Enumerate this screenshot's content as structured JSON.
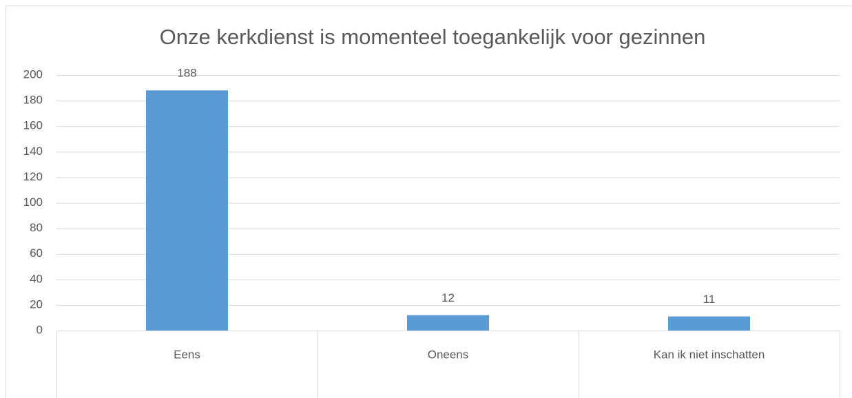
{
  "chart_data": {
    "type": "bar",
    "title": "Onze kerkdienst is momenteel toegankelijk voor gezinnen",
    "categories": [
      "Eens",
      "Oneens",
      "Kan ik niet inschatten"
    ],
    "values": [
      188,
      12,
      11
    ],
    "color": "#5b9bd5",
    "ylim": [
      0,
      200
    ],
    "yticks": [
      0,
      20,
      40,
      60,
      80,
      100,
      120,
      140,
      160,
      180,
      200
    ],
    "grid": true
  }
}
